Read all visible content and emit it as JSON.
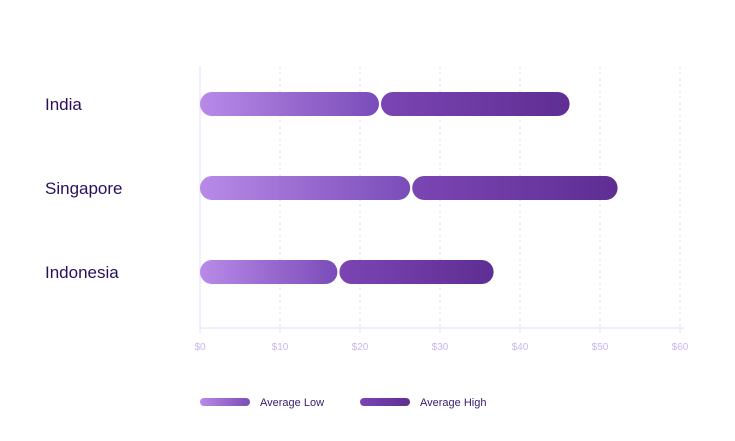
{
  "chart_data": {
    "type": "bar",
    "orientation": "horizontal",
    "stacked": true,
    "categories": [
      "India",
      "Singapore",
      "Indonesia"
    ],
    "series": [
      {
        "name": "Average Low",
        "values": [
          22.5,
          26.4,
          17.3
        ]
      },
      {
        "name": "Average High",
        "values": [
          23.7,
          25.8,
          19.4
        ]
      }
    ],
    "title": "",
    "xlabel": "",
    "ylabel": "",
    "xlim": [
      0,
      60
    ],
    "x_ticks": [
      0,
      10,
      20,
      30,
      40,
      50,
      60
    ],
    "x_tick_labels": [
      "$0",
      "$10",
      "$20",
      "$30",
      "$40",
      "$50",
      "$60"
    ],
    "grid": true,
    "legend": "bottom-left",
    "colors": {
      "low_start": "#b88ae8",
      "low_end": "#7a4cb8",
      "high_start": "#7b45b3",
      "high_end": "#5e2e93",
      "category_text": "#2a0f5c",
      "tick_text": "#c9b6f0",
      "grid": "#e4dcf7",
      "legend_text": "#3a1a6e"
    }
  }
}
